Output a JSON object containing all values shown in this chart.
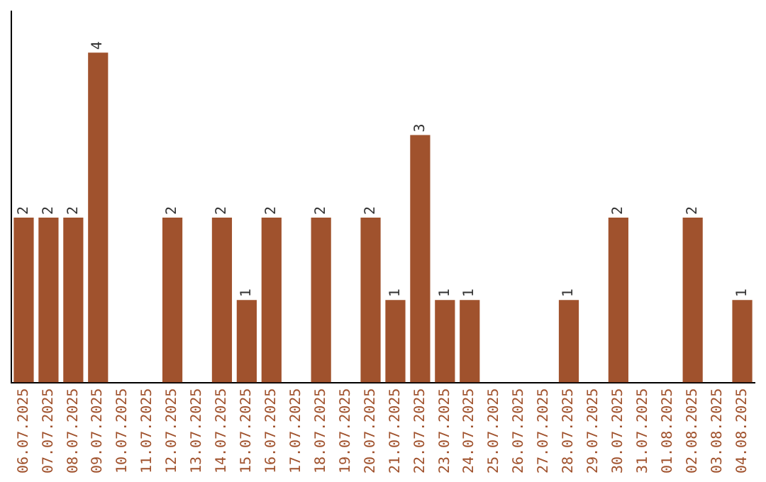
{
  "chart_data": {
    "type": "bar",
    "categories": [
      "06.07.2025",
      "07.07.2025",
      "08.07.2025",
      "09.07.2025",
      "10.07.2025",
      "11.07.2025",
      "12.07.2025",
      "13.07.2025",
      "14.07.2025",
      "15.07.2025",
      "16.07.2025",
      "17.07.2025",
      "18.07.2025",
      "19.07.2025",
      "20.07.2025",
      "21.07.2025",
      "22.07.2025",
      "23.07.2025",
      "24.07.2025",
      "25.07.2025",
      "26.07.2025",
      "27.07.2025",
      "28.07.2025",
      "29.07.2025",
      "30.07.2025",
      "31.07.2025",
      "01.08.2025",
      "02.08.2025",
      "03.08.2025",
      "04.08.2025"
    ],
    "values": [
      2,
      2,
      2,
      4,
      0,
      0,
      2,
      0,
      2,
      1,
      2,
      0,
      2,
      0,
      2,
      1,
      3,
      1,
      1,
      0,
      0,
      0,
      1,
      0,
      2,
      0,
      0,
      2,
      0,
      1
    ],
    "value_labels": [
      "2",
      "2",
      "2",
      "4",
      null,
      null,
      "2",
      null,
      "2",
      "1",
      "2",
      null,
      "2",
      null,
      "2",
      "1",
      "3",
      "1",
      "1",
      null,
      null,
      null,
      "1",
      null,
      "2",
      null,
      null,
      "2",
      null,
      "1"
    ],
    "color": "#a0522d",
    "grid": false,
    "legend": false
  }
}
